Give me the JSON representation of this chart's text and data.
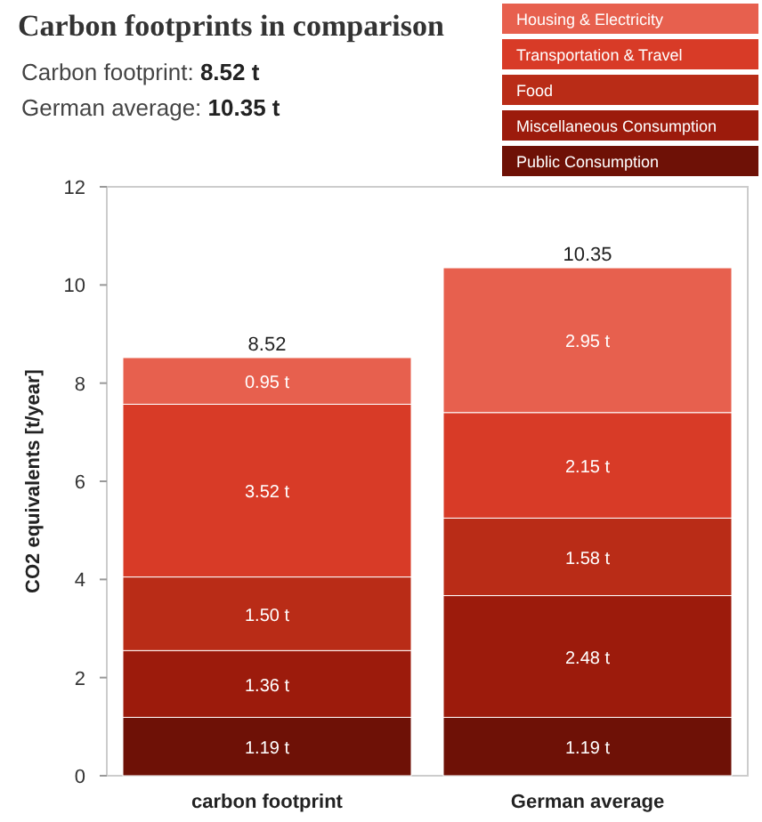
{
  "chart_data": {
    "type": "bar",
    "title": "Carbon footprints in comparison",
    "annotations": [
      "Carbon footprint: 8.52 t",
      "German average: 10.35 t"
    ],
    "ylabel": "CO2 equivalents [t/year]",
    "categories": [
      "carbon footprint",
      "German average"
    ],
    "stacked": true,
    "legend": "top right",
    "grid": false,
    "ylim": [
      0,
      12
    ],
    "yticks": [
      0,
      2,
      4,
      6,
      8,
      10,
      12
    ],
    "totals": [
      "8.52",
      "10.35"
    ],
    "series": [
      {
        "name": "Public Consumption",
        "color": "#6e1106",
        "values": [
          1.19,
          1.19
        ],
        "value_labels": [
          "1.19 t",
          "1.19 t"
        ]
      },
      {
        "name": "Miscellaneous Consumption",
        "color": "#9c1b0c",
        "values": [
          1.36,
          2.48
        ],
        "value_labels": [
          "1.36 t",
          "2.48 t"
        ]
      },
      {
        "name": "Food",
        "color": "#b92c17",
        "values": [
          1.5,
          1.58
        ],
        "value_labels": [
          "1.50 t",
          "1.58 t"
        ]
      },
      {
        "name": "Transportation & Travel",
        "color": "#d83b27",
        "values": [
          3.52,
          2.15
        ],
        "value_labels": [
          "3.52 t",
          "2.15 t"
        ]
      },
      {
        "name": "Housing & Electricity",
        "color": "#e7604e",
        "values": [
          0.95,
          2.95
        ],
        "value_labels": [
          "0.95 t",
          "2.95 t"
        ]
      }
    ]
  }
}
